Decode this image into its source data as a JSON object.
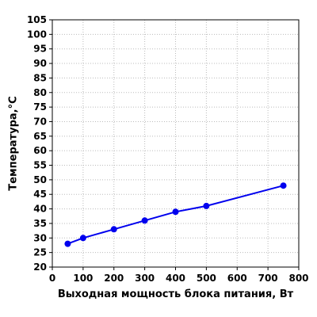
{
  "chart_data": {
    "type": "line",
    "title": "",
    "xlabel": "Выходная мощность блока питания, Вт",
    "ylabel": "Температура,°С",
    "xlim": [
      0,
      800
    ],
    "ylim": [
      20,
      105
    ],
    "xticks": [
      0,
      100,
      200,
      300,
      400,
      500,
      600,
      700,
      800
    ],
    "yticks": [
      20,
      25,
      30,
      35,
      40,
      45,
      50,
      55,
      60,
      65,
      70,
      75,
      80,
      85,
      90,
      95,
      100,
      105
    ],
    "grid": true,
    "legend": "none",
    "series": [
      {
        "color": "#0000ee",
        "x": [
          50,
          100,
          200,
          300,
          400,
          500,
          750
        ],
        "y": [
          28,
          30,
          33,
          36,
          39,
          41,
          48
        ]
      }
    ]
  }
}
